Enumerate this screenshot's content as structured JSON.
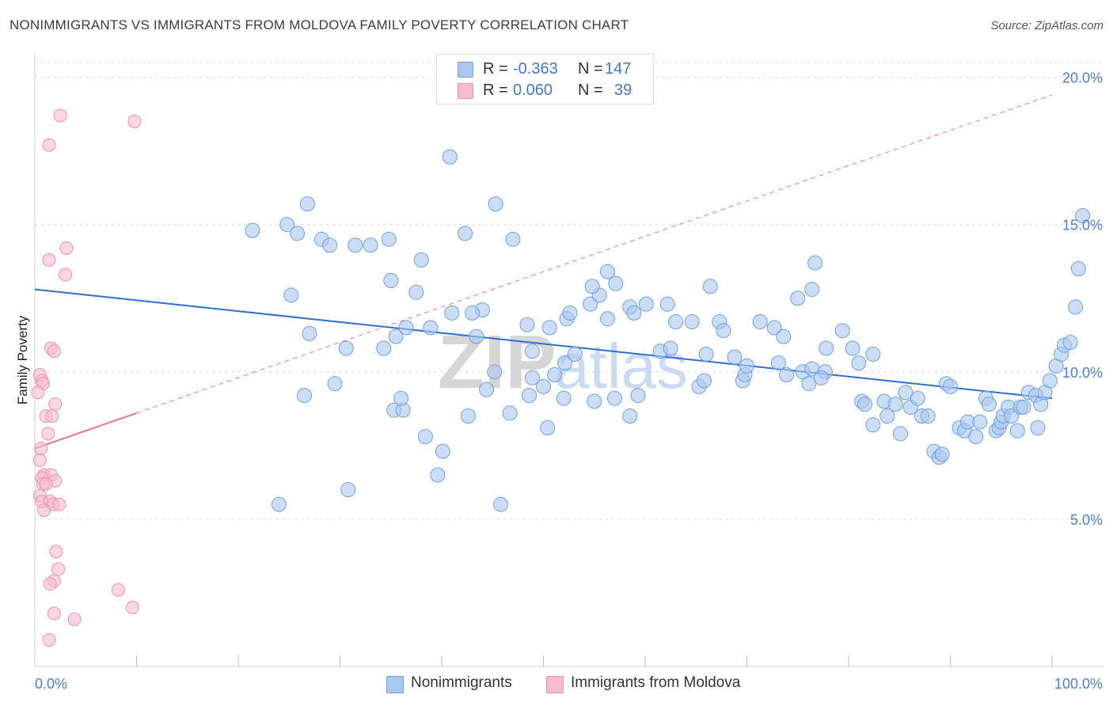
{
  "title": "NONIMMIGRANTS VS IMMIGRANTS FROM MOLDOVA FAMILY POVERTY CORRELATION CHART",
  "source": "Source: ZipAtlas.com",
  "watermark": "ZIPatlas",
  "legend": {
    "rows": [
      {
        "r_label": "R =",
        "r_value": "-0.363",
        "n_label": "N =",
        "n_value": "147"
      },
      {
        "r_label": "R =",
        "r_value": "0.060",
        "n_label": "N =",
        "n_value": "39"
      }
    ]
  },
  "bottom_legend": {
    "s1": "Nonimmigrants",
    "s2": "Immigrants from Moldova"
  },
  "colors": {
    "blue_fill": "#a9c8f0",
    "blue_stroke": "#6f9fe0",
    "blue_line": "#2f6fd0",
    "pink_fill": "#f6bccd",
    "pink_stroke": "#ec8fae",
    "pink_line": "#e8739a",
    "tick_text": "#4a7fd4"
  },
  "chart_data": {
    "type": "scatter",
    "title": "NONIMMIGRANTS VS IMMIGRANTS FROM MOLDOVA FAMILY POVERTY CORRELATION CHART",
    "xlabel": "",
    "ylabel": "Family Poverty",
    "xlim": [
      0,
      100
    ],
    "ylim": [
      0,
      20.5
    ],
    "x_tick_labels": [
      "0.0%",
      "100.0%"
    ],
    "y_ticks": [
      5,
      10,
      15,
      20
    ],
    "y_tick_labels": [
      "5.0%",
      "10.0%",
      "15.0%",
      "20.0%"
    ],
    "grid": true,
    "legend_position": "top-center",
    "series": [
      {
        "name": "Nonimmigrants",
        "color": "#a9c8f0",
        "trend": {
          "x": [
            0,
            100
          ],
          "y": [
            12.8,
            9.1
          ]
        },
        "points": [
          [
            21.4,
            14.8
          ],
          [
            24.8,
            15.0
          ],
          [
            25.8,
            14.7
          ],
          [
            26.8,
            15.7
          ],
          [
            28.2,
            14.5
          ],
          [
            29.0,
            14.3
          ],
          [
            31.5,
            14.3
          ],
          [
            33.0,
            14.3
          ],
          [
            34.8,
            14.5
          ],
          [
            40.8,
            17.3
          ],
          [
            42.3,
            14.7
          ],
          [
            45.3,
            15.7
          ],
          [
            47.0,
            14.5
          ],
          [
            38.0,
            13.8
          ],
          [
            25.2,
            12.6
          ],
          [
            37.5,
            12.7
          ],
          [
            35.0,
            13.1
          ],
          [
            44.0,
            12.1
          ],
          [
            43.0,
            12.0
          ],
          [
            27.0,
            11.3
          ],
          [
            30.6,
            10.8
          ],
          [
            34.3,
            10.8
          ],
          [
            36.5,
            11.5
          ],
          [
            41.0,
            12.0
          ],
          [
            35.5,
            11.2
          ],
          [
            38.9,
            11.5
          ],
          [
            43.4,
            11.2
          ],
          [
            45.2,
            10.0
          ],
          [
            48.4,
            11.6
          ],
          [
            48.9,
            10.7
          ],
          [
            50.6,
            11.5
          ],
          [
            52.1,
            10.3
          ],
          [
            53.1,
            10.6
          ],
          [
            52.3,
            11.8
          ],
          [
            52.6,
            12.0
          ],
          [
            54.6,
            12.3
          ],
          [
            55.5,
            12.6
          ],
          [
            54.8,
            12.9
          ],
          [
            56.3,
            13.4
          ],
          [
            57.1,
            13.0
          ],
          [
            56.3,
            11.8
          ],
          [
            58.5,
            12.2
          ],
          [
            58.9,
            12.0
          ],
          [
            60.1,
            12.3
          ],
          [
            62.2,
            12.3
          ],
          [
            61.5,
            10.7
          ],
          [
            63.0,
            11.7
          ],
          [
            62.5,
            10.8
          ],
          [
            64.6,
            11.7
          ],
          [
            66.4,
            12.9
          ],
          [
            66.0,
            10.6
          ],
          [
            65.3,
            9.5
          ],
          [
            65.8,
            9.7
          ],
          [
            67.3,
            11.7
          ],
          [
            67.7,
            11.4
          ],
          [
            68.8,
            10.5
          ],
          [
            69.6,
            9.7
          ],
          [
            69.8,
            9.9
          ],
          [
            70.0,
            10.2
          ],
          [
            71.3,
            11.7
          ],
          [
            72.7,
            11.5
          ],
          [
            73.6,
            11.2
          ],
          [
            73.1,
            10.3
          ],
          [
            73.9,
            9.9
          ],
          [
            75.0,
            12.5
          ],
          [
            75.5,
            10.0
          ],
          [
            76.1,
            9.6
          ],
          [
            76.4,
            10.1
          ],
          [
            76.4,
            12.8
          ],
          [
            77.8,
            10.8
          ],
          [
            77.7,
            10.0
          ],
          [
            77.3,
            9.8
          ],
          [
            76.7,
            13.7
          ],
          [
            79.4,
            11.4
          ],
          [
            80.4,
            10.8
          ],
          [
            81.0,
            10.3
          ],
          [
            82.4,
            10.6
          ],
          [
            81.3,
            9.0
          ],
          [
            81.6,
            8.9
          ],
          [
            82.4,
            8.2
          ],
          [
            83.5,
            9.0
          ],
          [
            83.8,
            8.5
          ],
          [
            84.6,
            8.9
          ],
          [
            85.6,
            9.3
          ],
          [
            85.1,
            7.9
          ],
          [
            86.1,
            8.8
          ],
          [
            86.8,
            9.1
          ],
          [
            87.2,
            8.5
          ],
          [
            87.8,
            8.5
          ],
          [
            88.4,
            7.3
          ],
          [
            88.9,
            7.1
          ],
          [
            89.2,
            7.2
          ],
          [
            89.6,
            9.6
          ],
          [
            90.0,
            9.5
          ],
          [
            90.9,
            8.1
          ],
          [
            91.4,
            8.0
          ],
          [
            91.7,
            8.3
          ],
          [
            92.5,
            7.8
          ],
          [
            92.9,
            8.3
          ],
          [
            93.5,
            9.1
          ],
          [
            93.8,
            8.9
          ],
          [
            94.5,
            8.0
          ],
          [
            94.8,
            8.1
          ],
          [
            95.0,
            8.3
          ],
          [
            95.2,
            8.5
          ],
          [
            95.7,
            8.8
          ],
          [
            96.0,
            8.5
          ],
          [
            96.6,
            8.0
          ],
          [
            96.9,
            8.8
          ],
          [
            97.2,
            8.8
          ],
          [
            97.7,
            9.3
          ],
          [
            98.4,
            9.2
          ],
          [
            98.6,
            8.1
          ],
          [
            98.9,
            8.9
          ],
          [
            99.3,
            9.3
          ],
          [
            99.8,
            9.7
          ],
          [
            100.4,
            10.2
          ],
          [
            100.9,
            10.6
          ],
          [
            101.2,
            10.9
          ],
          [
            101.8,
            11.0
          ],
          [
            102.3,
            12.2
          ],
          [
            102.6,
            13.5
          ],
          [
            103.0,
            15.3
          ],
          [
            26.5,
            9.2
          ],
          [
            29.5,
            9.6
          ],
          [
            30.8,
            6.0
          ],
          [
            24.0,
            5.5
          ],
          [
            35.3,
            8.7
          ],
          [
            36.2,
            8.7
          ],
          [
            36.0,
            9.1
          ],
          [
            38.4,
            7.8
          ],
          [
            39.6,
            6.5
          ],
          [
            40.1,
            7.3
          ],
          [
            42.6,
            8.5
          ],
          [
            44.4,
            9.4
          ],
          [
            46.7,
            8.6
          ],
          [
            48.6,
            9.2
          ],
          [
            48.9,
            9.8
          ],
          [
            50.0,
            9.5
          ],
          [
            50.4,
            8.1
          ],
          [
            51.1,
            9.9
          ],
          [
            52.0,
            9.1
          ],
          [
            55.0,
            9.0
          ],
          [
            57.0,
            9.1
          ],
          [
            58.5,
            8.5
          ],
          [
            59.3,
            9.2
          ],
          [
            45.8,
            5.5
          ]
        ]
      },
      {
        "name": "Immigrants from Moldova",
        "color": "#f6bccd",
        "trend": {
          "x": [
            0,
            10
          ],
          "y": [
            7.4,
            8.6
          ]
        },
        "points": [
          [
            2.5,
            18.7
          ],
          [
            1.4,
            17.7
          ],
          [
            9.8,
            18.5
          ],
          [
            3.1,
            14.2
          ],
          [
            1.4,
            13.8
          ],
          [
            3.0,
            13.3
          ],
          [
            1.6,
            10.8
          ],
          [
            1.9,
            10.7
          ],
          [
            0.5,
            9.9
          ],
          [
            0.7,
            9.7
          ],
          [
            0.8,
            9.6
          ],
          [
            2.0,
            8.9
          ],
          [
            1.1,
            8.5
          ],
          [
            1.7,
            8.5
          ],
          [
            1.3,
            7.9
          ],
          [
            0.6,
            7.4
          ],
          [
            0.5,
            7.0
          ],
          [
            0.9,
            6.5
          ],
          [
            1.6,
            6.5
          ],
          [
            0.7,
            6.4
          ],
          [
            0.8,
            6.2
          ],
          [
            2.0,
            6.3
          ],
          [
            1.1,
            6.2
          ],
          [
            0.5,
            5.8
          ],
          [
            0.7,
            5.6
          ],
          [
            1.5,
            5.6
          ],
          [
            1.8,
            5.5
          ],
          [
            2.4,
            5.5
          ],
          [
            0.9,
            5.3
          ],
          [
            2.1,
            3.9
          ],
          [
            2.3,
            3.3
          ],
          [
            1.9,
            2.9
          ],
          [
            1.5,
            2.8
          ],
          [
            8.2,
            2.6
          ],
          [
            9.6,
            2.0
          ],
          [
            1.9,
            1.8
          ],
          [
            3.9,
            1.6
          ],
          [
            1.4,
            0.9
          ],
          [
            0.3,
            9.3
          ]
        ]
      }
    ]
  }
}
